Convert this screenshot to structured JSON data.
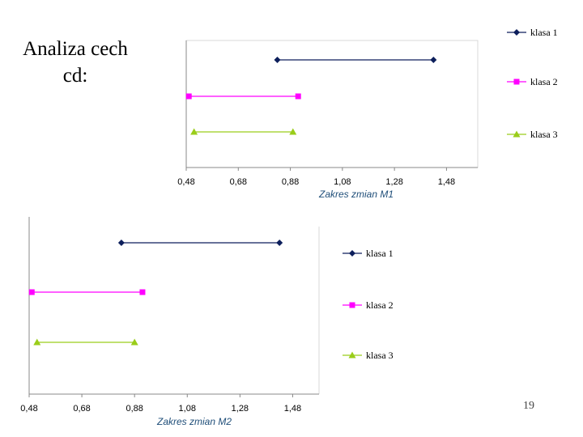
{
  "slide": {
    "title_line1": "Analiza cech",
    "title_line2": "cd:",
    "page_number": "19"
  },
  "chart_data": [
    {
      "type": "line",
      "title": "",
      "xlabel": "Zakres zmian M1",
      "ylabel": "",
      "xlim": [
        0.48,
        1.6
      ],
      "xticks": [
        0.48,
        0.68,
        0.88,
        1.08,
        1.28,
        1.48
      ],
      "tick_labels": [
        "0,48",
        "0,68",
        "0,88",
        "1,08",
        "1,28",
        "1,48"
      ],
      "grid": false,
      "legend_position": "right",
      "series": [
        {
          "name": "klasa 1",
          "color": "#0d1f5c",
          "marker": "diamond",
          "x": [
            0.83,
            1.43
          ]
        },
        {
          "name": "klasa 2",
          "color": "#ff00ff",
          "marker": "square",
          "x": [
            0.49,
            0.91
          ]
        },
        {
          "name": "klasa 3",
          "color": "#9acd1a",
          "marker": "triangle",
          "x": [
            0.51,
            0.89
          ]
        }
      ]
    },
    {
      "type": "line",
      "title": "",
      "xlabel": "Zakres zmian M2",
      "ylabel": "",
      "xlim": [
        0.48,
        1.58
      ],
      "xticks": [
        0.48,
        0.68,
        0.88,
        1.08,
        1.28,
        1.48
      ],
      "tick_labels": [
        "0,48",
        "0,68",
        "0,88",
        "1,08",
        "1,28",
        "1,48"
      ],
      "grid": false,
      "legend_position": "right",
      "series": [
        {
          "name": "klasa 1",
          "color": "#0d1f5c",
          "marker": "diamond",
          "x": [
            0.83,
            1.43
          ]
        },
        {
          "name": "klasa 2",
          "color": "#ff00ff",
          "marker": "square",
          "x": [
            0.49,
            0.91
          ]
        },
        {
          "name": "klasa 3",
          "color": "#9acd1a",
          "marker": "triangle",
          "x": [
            0.51,
            0.88
          ]
        }
      ]
    }
  ]
}
